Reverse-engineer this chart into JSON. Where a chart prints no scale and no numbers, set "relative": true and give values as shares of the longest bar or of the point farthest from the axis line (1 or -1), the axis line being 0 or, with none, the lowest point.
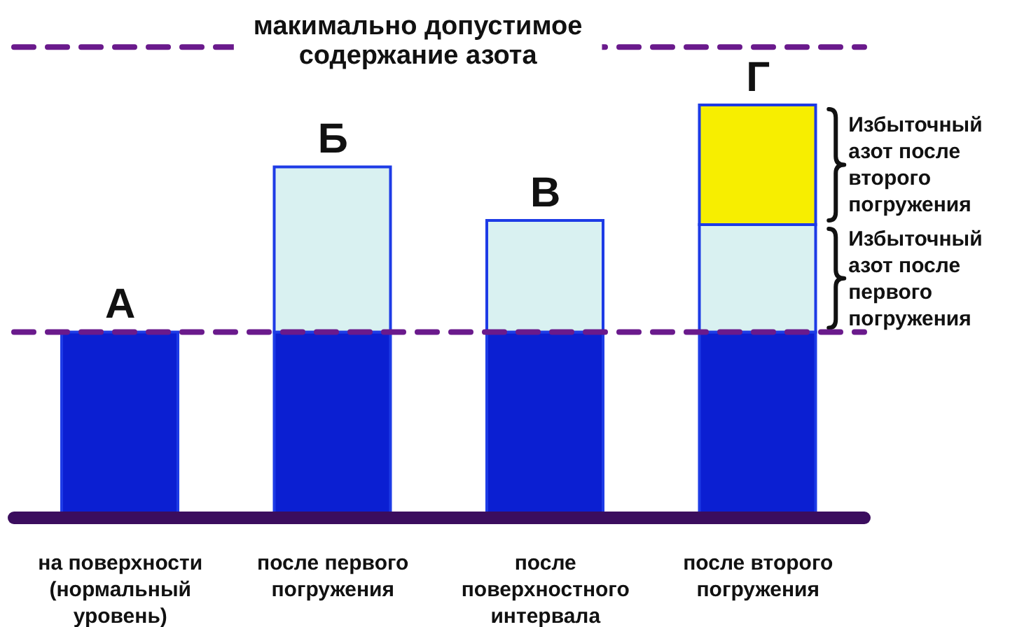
{
  "chart_data": {
    "type": "bar",
    "relative": true,
    "stacked": true,
    "categories": [
      "на поверхности (нормальный уровень)",
      "после первого погружения",
      "после поверхностного интервала",
      "после второго погружения"
    ],
    "series": [
      {
        "color": "#0b1fd2",
        "values": [
          0.45,
          0.45,
          0.45,
          0.45
        ]
      },
      {
        "color": "#d9f1f1",
        "values": [
          null,
          0.4,
          0.27,
          0.26
        ]
      },
      {
        "color": "#f7ee00",
        "values": [
          null,
          null,
          null,
          0.29
        ]
      }
    ],
    "ref_lines": [
      {
        "axis": "y",
        "value": 1.14,
        "label": "макимально допустимое содержание азота",
        "color": "#6a1a8c",
        "line_style": "dashed"
      },
      {
        "axis": "y",
        "value": 0.45,
        "color": "#6a1a8c",
        "line_style": "dashed"
      }
    ],
    "annotations": [
      {
        "text": "А",
        "x": "на поверхности (нормальный уровень)",
        "y": 0.45
      },
      {
        "text": "Б",
        "x": "после первого погружения",
        "y": 0.85
      },
      {
        "text": "В",
        "x": "после поверхностного интервала",
        "y": 0.72
      },
      {
        "text": "Г",
        "x": "после второго погружения",
        "y": 1.0
      },
      "Избыточный азот после второго погружения",
      "Избыточный азот после первого погружения"
    ]
  }
}
